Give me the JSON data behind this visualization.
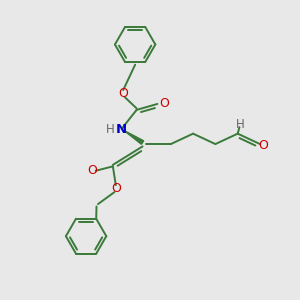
{
  "bg_color": "#e8e8e8",
  "bond_color": "#3a7a3a",
  "o_color": "#cc0000",
  "n_color": "#0000cc",
  "h_color": "#666666",
  "line_width": 1.4,
  "fig_size": [
    3.0,
    3.0
  ],
  "dpi": 100,
  "xlim": [
    0,
    10
  ],
  "ylim": [
    0,
    10
  ]
}
